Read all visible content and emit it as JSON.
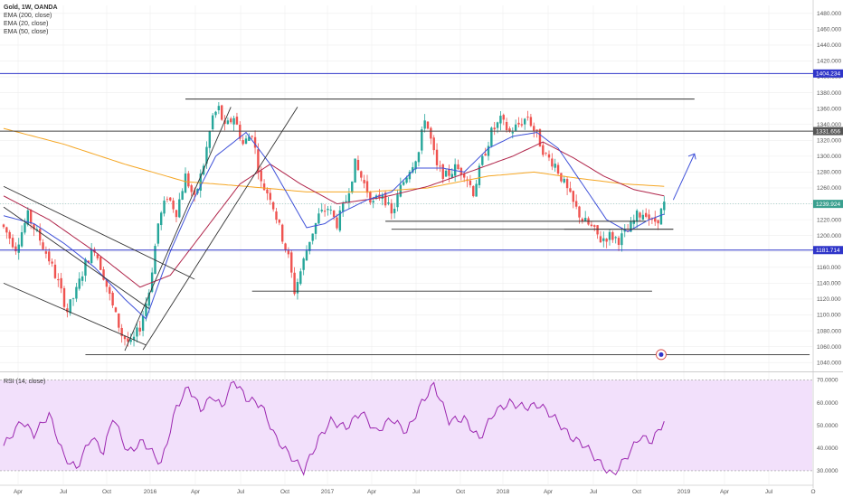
{
  "legend": {
    "symbol": "Gold, 1W, OANDA",
    "ema200": "EMA (200, close)",
    "ema20": "EMA (20, close)",
    "ema50": "EMA (50, close)",
    "rsi": "RSI (14, close)"
  },
  "colors": {
    "up": "#26a69a",
    "down": "#ef5350",
    "ema20": "#3f51d9",
    "ema50": "#b0254a",
    "ema200": "#f5a623",
    "hline": "#2f35c9",
    "trend": "#333333",
    "rsi_line": "#9c27b0",
    "rsi_band": "#f2e0fb",
    "grid": "#eeeeee",
    "badge_gray": "#555555",
    "badge_blue": "#2f35c9",
    "badge_green": "#3aa08f"
  },
  "chart_data": [
    {
      "type": "candlestick",
      "title": "Gold, 1W, OANDA",
      "x_ticks": [
        "Apr",
        "Jul",
        "Oct",
        "2016",
        "Apr",
        "Jul",
        "Oct",
        "2017",
        "Apr",
        "Jul",
        "Oct",
        "2018",
        "Apr",
        "Jul",
        "Oct",
        "2019",
        "Apr",
        "Jul",
        "O"
      ],
      "y_ticks": [
        1040,
        1060,
        1080,
        1100,
        1120,
        1140,
        1160,
        1180,
        1200,
        1220,
        1240,
        1260,
        1280,
        1300,
        1320,
        1340,
        1360,
        1380,
        1400,
        1420,
        1440,
        1460,
        1480
      ],
      "y_tick_labels": [
        "1040.000",
        "1060.000",
        "1080.000",
        "1100.000",
        "1120.000",
        "1140.000",
        "1160.000",
        "1180.000",
        "1200.000",
        "1220.000",
        "1240.000",
        "1260.000",
        "1280.000",
        "1300.000",
        "1320.000",
        "1340.000",
        "1360.000",
        "1380.000",
        "1400.000",
        "1420.000",
        "1440.000",
        "1460.000",
        "1480.000"
      ],
      "ylim": [
        1030,
        1490
      ],
      "price_labels": [
        {
          "value": 1404.234,
          "text": "1404.234",
          "style": "blue"
        },
        {
          "value": 1331.656,
          "text": "1331.656",
          "style": "gray"
        },
        {
          "value": 1239.924,
          "text": "1239.924",
          "style": "green"
        },
        {
          "value": 1181.714,
          "text": "1181.714",
          "style": "blue"
        }
      ],
      "horizontal_levels": [
        1404.234,
        1331.656,
        1181.714
      ],
      "ohlc_anchors": [
        {
          "week": 0,
          "close": 1210
        },
        {
          "week": 4,
          "close": 1185
        },
        {
          "week": 8,
          "close": 1225
        },
        {
          "week": 12,
          "close": 1195
        },
        {
          "week": 15,
          "close": 1170
        },
        {
          "week": 18,
          "close": 1140
        },
        {
          "week": 21,
          "close": 1105
        },
        {
          "week": 24,
          "close": 1130
        },
        {
          "week": 27,
          "close": 1165
        },
        {
          "week": 30,
          "close": 1185
        },
        {
          "week": 33,
          "close": 1150
        },
        {
          "week": 36,
          "close": 1110
        },
        {
          "week": 39,
          "close": 1075
        },
        {
          "week": 42,
          "close": 1062
        },
        {
          "week": 45,
          "close": 1085
        },
        {
          "week": 48,
          "close": 1130
        },
        {
          "week": 51,
          "close": 1215
        },
        {
          "week": 54,
          "close": 1250
        },
        {
          "week": 57,
          "close": 1230
        },
        {
          "week": 60,
          "close": 1275
        },
        {
          "week": 63,
          "close": 1245
        },
        {
          "week": 66,
          "close": 1290
        },
        {
          "week": 69,
          "close": 1350
        },
        {
          "week": 71,
          "close": 1360
        },
        {
          "week": 73,
          "close": 1335
        },
        {
          "week": 76,
          "close": 1350
        },
        {
          "week": 79,
          "close": 1315
        },
        {
          "week": 82,
          "close": 1330
        },
        {
          "week": 85,
          "close": 1265
        },
        {
          "week": 88,
          "close": 1250
        },
        {
          "week": 91,
          "close": 1210
        },
        {
          "week": 94,
          "close": 1172
        },
        {
          "week": 96,
          "close": 1130
        },
        {
          "week": 98,
          "close": 1155
        },
        {
          "week": 101,
          "close": 1195
        },
        {
          "week": 104,
          "close": 1225
        },
        {
          "week": 107,
          "close": 1235
        },
        {
          "week": 110,
          "close": 1215
        },
        {
          "week": 113,
          "close": 1245
        },
        {
          "week": 116,
          "close": 1290
        },
        {
          "week": 119,
          "close": 1265
        },
        {
          "week": 122,
          "close": 1240
        },
        {
          "week": 125,
          "close": 1255
        },
        {
          "week": 128,
          "close": 1225
        },
        {
          "week": 131,
          "close": 1260
        },
        {
          "week": 134,
          "close": 1285
        },
        {
          "week": 137,
          "close": 1305
        },
        {
          "week": 139,
          "close": 1350
        },
        {
          "week": 141,
          "close": 1320
        },
        {
          "week": 143,
          "close": 1285
        },
        {
          "week": 146,
          "close": 1275
        },
        {
          "week": 149,
          "close": 1285
        },
        {
          "week": 152,
          "close": 1280
        },
        {
          "week": 155,
          "close": 1255
        },
        {
          "week": 158,
          "close": 1295
        },
        {
          "week": 161,
          "close": 1330
        },
        {
          "week": 164,
          "close": 1345
        },
        {
          "week": 167,
          "close": 1330
        },
        {
          "week": 170,
          "close": 1340
        },
        {
          "week": 173,
          "close": 1350
        },
        {
          "week": 176,
          "close": 1325
        },
        {
          "week": 179,
          "close": 1300
        },
        {
          "week": 182,
          "close": 1290
        },
        {
          "week": 185,
          "close": 1265
        },
        {
          "week": 188,
          "close": 1240
        },
        {
          "week": 191,
          "close": 1220
        },
        {
          "week": 194,
          "close": 1210
        },
        {
          "week": 197,
          "close": 1195
        },
        {
          "week": 200,
          "close": 1200
        },
        {
          "week": 203,
          "close": 1195
        },
        {
          "week": 206,
          "close": 1205
        },
        {
          "week": 209,
          "close": 1225
        },
        {
          "week": 212,
          "close": 1230
        },
        {
          "week": 214,
          "close": 1215
        },
        {
          "week": 216,
          "close": 1222
        },
        {
          "week": 218,
          "close": 1239
        }
      ],
      "ema20_anchors": [
        {
          "week": 0,
          "value": 1225
        },
        {
          "week": 10,
          "value": 1215
        },
        {
          "week": 20,
          "value": 1190
        },
        {
          "week": 30,
          "value": 1160
        },
        {
          "week": 40,
          "value": 1120
        },
        {
          "week": 47,
          "value": 1095
        },
        {
          "week": 55,
          "value": 1180
        },
        {
          "week": 62,
          "value": 1240
        },
        {
          "week": 70,
          "value": 1300
        },
        {
          "week": 80,
          "value": 1330
        },
        {
          "week": 88,
          "value": 1290
        },
        {
          "week": 94,
          "value": 1250
        },
        {
          "week": 100,
          "value": 1210
        },
        {
          "week": 106,
          "value": 1215
        },
        {
          "week": 112,
          "value": 1230
        },
        {
          "week": 120,
          "value": 1245
        },
        {
          "week": 128,
          "value": 1255
        },
        {
          "week": 136,
          "value": 1285
        },
        {
          "week": 145,
          "value": 1285
        },
        {
          "week": 152,
          "value": 1280
        },
        {
          "week": 160,
          "value": 1310
        },
        {
          "week": 168,
          "value": 1325
        },
        {
          "week": 176,
          "value": 1330
        },
        {
          "week": 183,
          "value": 1310
        },
        {
          "week": 191,
          "value": 1265
        },
        {
          "week": 199,
          "value": 1220
        },
        {
          "week": 206,
          "value": 1205
        },
        {
          "week": 213,
          "value": 1220
        },
        {
          "week": 218,
          "value": 1227
        }
      ],
      "ema50_anchors": [
        {
          "week": 0,
          "value": 1250
        },
        {
          "week": 15,
          "value": 1220
        },
        {
          "week": 30,
          "value": 1180
        },
        {
          "week": 45,
          "value": 1135
        },
        {
          "week": 55,
          "value": 1150
        },
        {
          "week": 65,
          "value": 1200
        },
        {
          "week": 78,
          "value": 1265
        },
        {
          "week": 88,
          "value": 1290
        },
        {
          "week": 98,
          "value": 1265
        },
        {
          "week": 110,
          "value": 1240
        },
        {
          "week": 125,
          "value": 1248
        },
        {
          "week": 140,
          "value": 1262
        },
        {
          "week": 155,
          "value": 1282
        },
        {
          "week": 168,
          "value": 1300
        },
        {
          "week": 178,
          "value": 1318
        },
        {
          "week": 188,
          "value": 1298
        },
        {
          "week": 198,
          "value": 1275
        },
        {
          "week": 208,
          "value": 1258
        },
        {
          "week": 218,
          "value": 1250
        }
      ],
      "ema200_anchors": [
        {
          "week": 0,
          "value": 1335
        },
        {
          "week": 20,
          "value": 1315
        },
        {
          "week": 40,
          "value": 1290
        },
        {
          "week": 60,
          "value": 1268
        },
        {
          "week": 80,
          "value": 1262
        },
        {
          "week": 100,
          "value": 1255
        },
        {
          "week": 120,
          "value": 1255
        },
        {
          "week": 140,
          "value": 1260
        },
        {
          "week": 160,
          "value": 1275
        },
        {
          "week": 175,
          "value": 1280
        },
        {
          "week": 190,
          "value": 1272
        },
        {
          "week": 205,
          "value": 1265
        },
        {
          "week": 218,
          "value": 1262
        }
      ]
    },
    {
      "type": "line",
      "title": "RSI (14, close)",
      "y_ticks": [
        30,
        40,
        50,
        60,
        70
      ],
      "y_tick_labels": [
        "30.0000",
        "40.0000",
        "50.0000",
        "60.0000",
        "70.0000"
      ],
      "band": [
        30,
        70
      ],
      "ylim": [
        24,
        73
      ],
      "rsi_anchors": [
        {
          "week": 0,
          "value": 41
        },
        {
          "week": 6,
          "value": 52
        },
        {
          "week": 10,
          "value": 46
        },
        {
          "week": 15,
          "value": 55
        },
        {
          "week": 20,
          "value": 36
        },
        {
          "week": 24,
          "value": 31
        },
        {
          "week": 29,
          "value": 45
        },
        {
          "week": 33,
          "value": 38
        },
        {
          "week": 36,
          "value": 54
        },
        {
          "week": 41,
          "value": 38
        },
        {
          "week": 46,
          "value": 43
        },
        {
          "week": 52,
          "value": 33
        },
        {
          "week": 57,
          "value": 58
        },
        {
          "week": 61,
          "value": 67
        },
        {
          "week": 65,
          "value": 57
        },
        {
          "week": 69,
          "value": 63
        },
        {
          "week": 72,
          "value": 58
        },
        {
          "week": 76,
          "value": 70
        },
        {
          "week": 80,
          "value": 62
        },
        {
          "week": 85,
          "value": 59
        },
        {
          "week": 90,
          "value": 44
        },
        {
          "week": 95,
          "value": 36
        },
        {
          "week": 99,
          "value": 30
        },
        {
          "week": 104,
          "value": 44
        },
        {
          "week": 108,
          "value": 52
        },
        {
          "week": 113,
          "value": 49
        },
        {
          "week": 118,
          "value": 56
        },
        {
          "week": 123,
          "value": 47
        },
        {
          "week": 128,
          "value": 53
        },
        {
          "week": 133,
          "value": 47
        },
        {
          "week": 138,
          "value": 60
        },
        {
          "week": 142,
          "value": 68
        },
        {
          "week": 147,
          "value": 52
        },
        {
          "week": 152,
          "value": 53
        },
        {
          "week": 157,
          "value": 44
        },
        {
          "week": 162,
          "value": 56
        },
        {
          "week": 167,
          "value": 60
        },
        {
          "week": 172,
          "value": 58
        },
        {
          "week": 177,
          "value": 59
        },
        {
          "week": 182,
          "value": 53
        },
        {
          "week": 187,
          "value": 45
        },
        {
          "week": 192,
          "value": 41
        },
        {
          "week": 197,
          "value": 33
        },
        {
          "week": 201,
          "value": 28
        },
        {
          "week": 205,
          "value": 35
        },
        {
          "week": 210,
          "value": 45
        },
        {
          "week": 214,
          "value": 43
        },
        {
          "week": 218,
          "value": 52
        }
      ]
    }
  ]
}
